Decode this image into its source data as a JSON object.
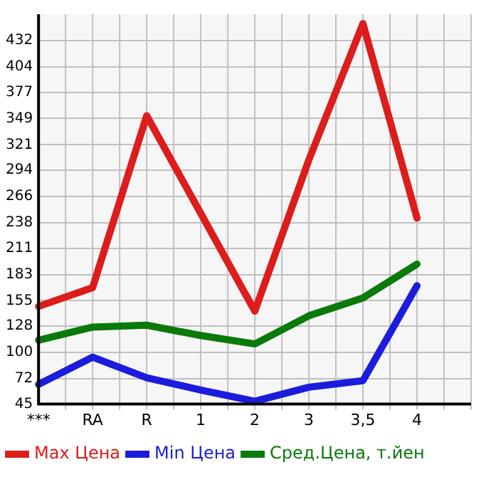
{
  "chart_data": {
    "type": "line",
    "categories": [
      "***",
      "RA",
      "R",
      "1",
      "2",
      "3",
      "3,5",
      "4"
    ],
    "series": [
      {
        "name": "Max Цена",
        "color": "#dd1c1c",
        "values": [
          149,
          169,
          352,
          248,
          144,
          305,
          450,
          243
        ]
      },
      {
        "name": "Min Цена",
        "color": "#1c1cdd",
        "values": [
          66,
          95,
          73,
          60,
          48,
          63,
          70,
          171
        ]
      },
      {
        "name": "Сред.Цена, т.йен",
        "color": "#0a7a0a",
        "values": [
          113,
          127,
          129,
          118,
          109,
          139,
          158,
          194
        ]
      }
    ],
    "ylim": [
      45,
      460
    ],
    "yticks": [
      45,
      72,
      100,
      128,
      155,
      183,
      211,
      238,
      266,
      294,
      321,
      349,
      377,
      404,
      432
    ],
    "grid": true,
    "legend": "bottom",
    "marker": "none",
    "line_style": "solid"
  }
}
